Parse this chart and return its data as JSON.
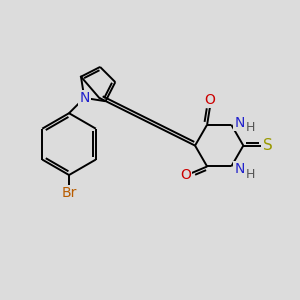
{
  "background_color": "#dcdcdc",
  "bond_color": "#000000",
  "atom_colors": {
    "Br": "#b85c00",
    "N": "#2222cc",
    "O": "#cc0000",
    "S": "#999900",
    "H": "#555555",
    "C": "#000000"
  },
  "font_size": 10,
  "fig_size": [
    3.0,
    3.0
  ],
  "dpi": 100
}
